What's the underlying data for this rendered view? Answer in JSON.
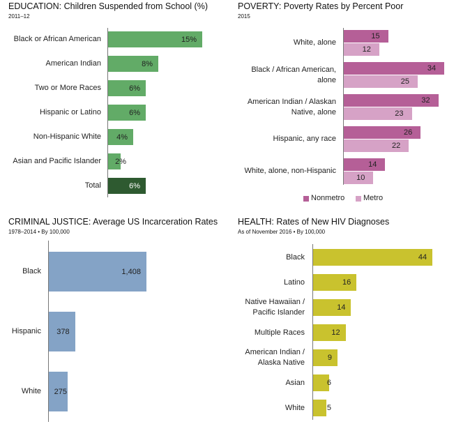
{
  "chart_data": [
    {
      "type": "bar",
      "orientation": "horizontal",
      "title": "EDUCATION: Children Suspended from School (%)",
      "subtitle": "2011–12",
      "categories": [
        "Black or African American",
        "American Indian",
        "Two or More Races",
        "Hispanic or Latino",
        "Non-Hispanic White",
        "Asian and Pacific Islander",
        "Total"
      ],
      "values": [
        15,
        8,
        6,
        6,
        4,
        2,
        6
      ],
      "value_labels": [
        "15%",
        "8%",
        "6%",
        "6%",
        "4%",
        "2%",
        "6%"
      ],
      "colors": [
        "#62ab67",
        "#62ab67",
        "#62ab67",
        "#62ab67",
        "#62ab67",
        "#62ab67",
        "#2e5a30"
      ]
    },
    {
      "type": "bar",
      "orientation": "horizontal",
      "title": "POVERTY: Poverty Rates by Percent Poor",
      "subtitle": "2015",
      "categories": [
        "White, alone",
        "Black / African American,\nalone",
        "American Indian / Alaskan\nNative, alone",
        "Hispanic, any race",
        "White, alone, non-Hispanic"
      ],
      "series": [
        {
          "name": "Nonmetro",
          "values": [
            15,
            34,
            32,
            26,
            14
          ],
          "color": "#b55f97"
        },
        {
          "name": "Metro",
          "values": [
            12,
            25,
            23,
            22,
            10
          ],
          "color": "#d6a2c6"
        }
      ],
      "legend": "bottom"
    },
    {
      "type": "bar",
      "orientation": "horizontal",
      "title": "CRIMINAL JUSTICE: Average US Incarceration Rates",
      "subtitle": "1978–2014 • By 100,000",
      "categories": [
        "Black",
        "Hispanic",
        "White"
      ],
      "values": [
        1408,
        378,
        275
      ],
      "value_labels": [
        "1,408",
        "378",
        "275"
      ],
      "colors": [
        "#84a3c6",
        "#84a3c6",
        "#84a3c6"
      ]
    },
    {
      "type": "bar",
      "orientation": "horizontal",
      "title": "HEALTH: Rates of New HIV Diagnoses",
      "subtitle": "As of November 2016 • By 100,000",
      "categories": [
        "Black",
        "Latino",
        "Native Hawaiian /\nPacific Islander",
        "Multiple Races",
        "American Indian /\nAlaska Native",
        "Asian",
        "White"
      ],
      "values": [
        44,
        16,
        14,
        12,
        9,
        6,
        5
      ],
      "value_labels": [
        "44",
        "16",
        "14",
        "12",
        "9",
        "6",
        "5"
      ],
      "colors": [
        "#c9c22e",
        "#c9c22e",
        "#c9c22e",
        "#c9c22e",
        "#c9c22e",
        "#c9c22e",
        "#c9c22e"
      ]
    }
  ]
}
